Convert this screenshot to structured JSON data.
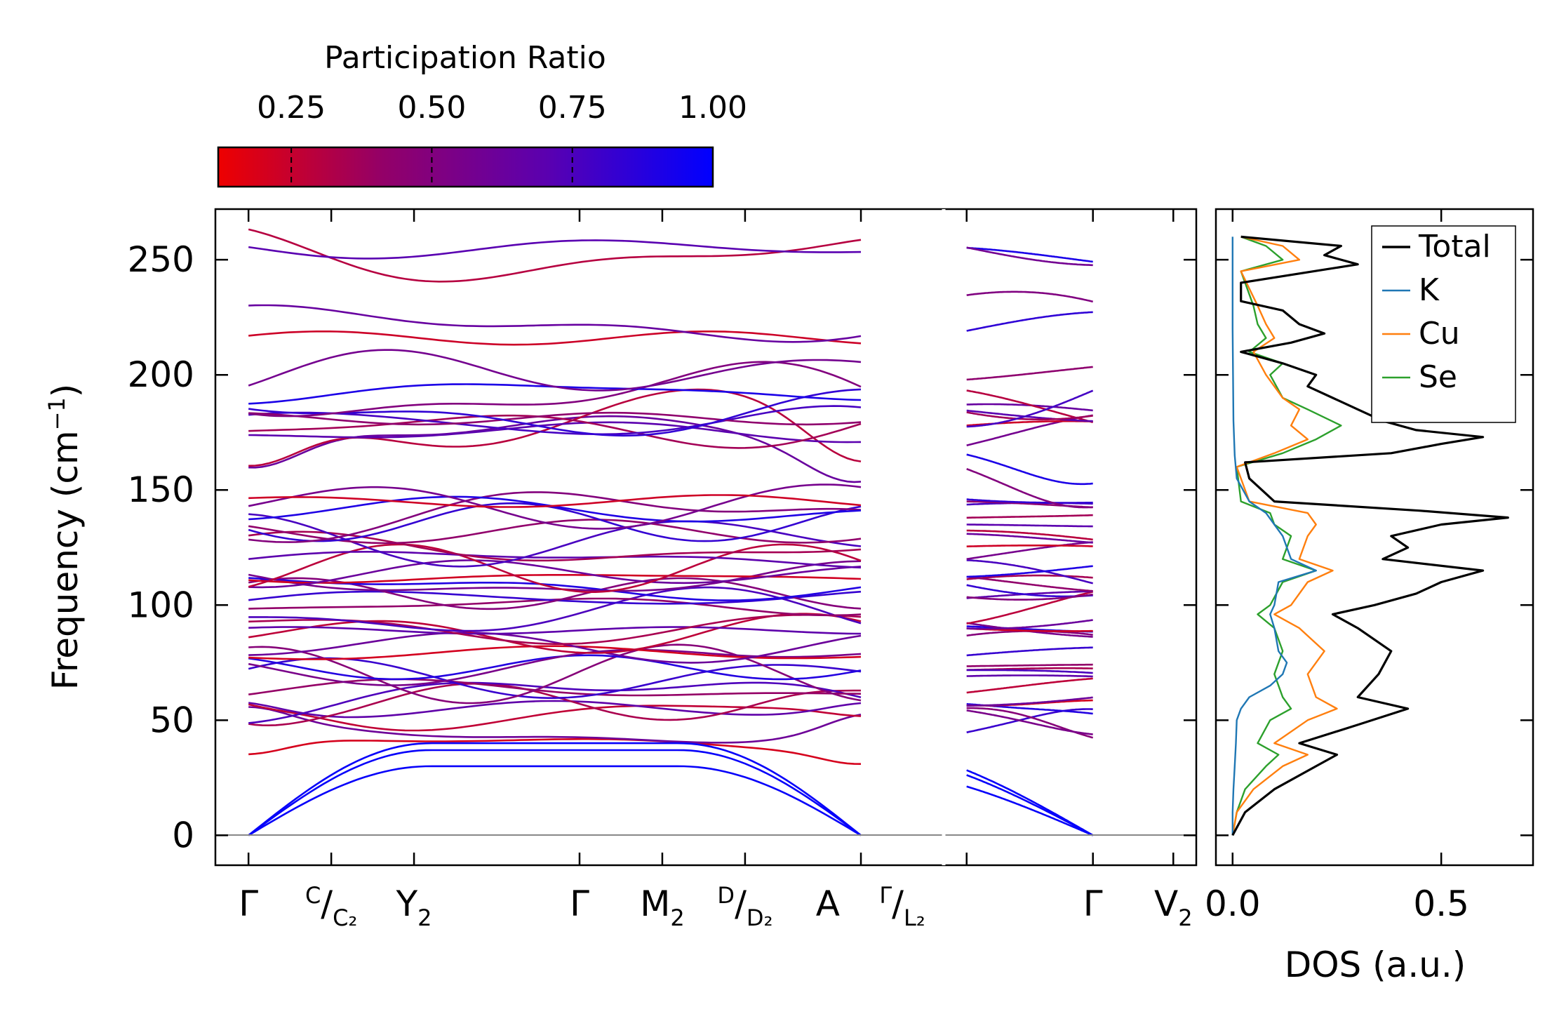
{
  "chart_data": [
    {
      "type": "line",
      "subtype": "phonon-dispersion",
      "ylabel": "Frequency (cm",
      "ylabel_sup": "−1",
      "ylabel_close": ")",
      "ylim": [
        -13,
        272
      ],
      "yticks": [
        0,
        50,
        100,
        150,
        200,
        250
      ],
      "ytick_labels": [
        "0",
        "50",
        "100",
        "150",
        "200",
        "250"
      ],
      "segments": [
        {
          "name": "left-panel",
          "xlim": [
            -0.2,
            4.2
          ],
          "path_points": [
            0,
            1,
            2,
            3.7
          ],
          "gamma_points": [
            0,
            3.7
          ]
        },
        {
          "name": "right-panel",
          "xlim": [
            -0.1,
            1.0
          ],
          "path_points": [
            0,
            0.55
          ],
          "gamma_points": [
            0.55
          ]
        }
      ],
      "high_symmetry_labels": [
        {
          "main": "Γ",
          "sup": "",
          "slash": "",
          "sub": ""
        },
        {
          "main": "",
          "sup": "C",
          "slash": "/",
          "sub": "C₂"
        },
        {
          "main": "Y",
          "sup": "",
          "slash": "",
          "sub": "2"
        },
        {
          "main": "Γ",
          "sup": "",
          "slash": "",
          "sub": ""
        },
        {
          "main": "M",
          "sup": "",
          "slash": "",
          "sub": "2"
        },
        {
          "main": "",
          "sup": "D",
          "slash": "/",
          "sub": "D₂"
        },
        {
          "main": "A",
          "sup": "",
          "slash": "",
          "sub": ""
        },
        {
          "main": "",
          "sup": "Γ",
          "slash": "/",
          "sub": "L₂"
        },
        {
          "main": "Γ",
          "sup": "",
          "slash": "",
          "sub": ""
        },
        {
          "main": "V",
          "sup": "",
          "slash": "",
          "sub": "2"
        }
      ],
      "colorbar": {
        "title": "Participation Ratio",
        "range": [
          0.12,
          1.0
        ],
        "ticks": [
          0.25,
          0.5,
          0.75,
          1.0
        ],
        "tick_labels": [
          "0.25",
          "0.50",
          "0.75",
          "1.00"
        ],
        "colors": [
          "#ee0000",
          "#930068",
          "#5a00b0",
          "#0000ff"
        ]
      },
      "acoustic_branch_count": 3,
      "optical_branch_frequencies": [
        40,
        44,
        53,
        55,
        58,
        60,
        63,
        68,
        70,
        73,
        75,
        79,
        82,
        87,
        89,
        91,
        96,
        100,
        103,
        105,
        108,
        110,
        112,
        114,
        116,
        120,
        124,
        128,
        132,
        136,
        139,
        141,
        143,
        145,
        166,
        170,
        175,
        177,
        179,
        181,
        184,
        191,
        193,
        201,
        216,
        222,
        251,
        255
      ]
    },
    {
      "type": "line",
      "subtype": "density-of-states",
      "xlabel": "DOS (a.u.)",
      "xlim": [
        -0.04,
        0.72
      ],
      "xticks": [
        0.0,
        0.5
      ],
      "xtick_labels": [
        "0.0",
        "0.5"
      ],
      "ylim": [
        -13,
        272
      ],
      "series": [
        {
          "name": "Total",
          "color": "#000000",
          "freq": [
            0,
            10,
            20,
            30,
            35,
            40,
            48,
            55,
            60,
            70,
            80,
            90,
            96,
            100,
            105,
            110,
            115,
            120,
            125,
            130,
            135,
            138,
            141,
            145,
            155,
            162,
            166,
            170,
            173,
            176,
            180,
            185,
            190,
            195,
            200,
            205,
            210,
            214,
            218,
            222,
            228,
            232,
            240,
            248,
            252,
            256,
            260
          ],
          "values": [
            0.0,
            0.03,
            0.1,
            0.2,
            0.25,
            0.16,
            0.3,
            0.42,
            0.3,
            0.35,
            0.38,
            0.3,
            0.24,
            0.34,
            0.44,
            0.5,
            0.6,
            0.36,
            0.42,
            0.38,
            0.5,
            0.66,
            0.45,
            0.1,
            0.04,
            0.03,
            0.38,
            0.5,
            0.6,
            0.44,
            0.36,
            0.3,
            0.24,
            0.18,
            0.2,
            0.12,
            0.02,
            0.14,
            0.22,
            0.16,
            0.12,
            0.02,
            0.02,
            0.3,
            0.22,
            0.26,
            0.02
          ]
        },
        {
          "name": "K",
          "color": "#1f77b4",
          "freq": [
            0,
            10,
            20,
            30,
            40,
            50,
            55,
            60,
            65,
            70,
            75,
            80,
            90,
            96,
            100,
            110,
            115,
            120,
            130,
            135,
            140,
            145,
            155,
            165,
            180,
            200,
            220,
            240,
            260
          ],
          "values": [
            0.0,
            0.0,
            0.002,
            0.005,
            0.008,
            0.01,
            0.02,
            0.04,
            0.09,
            0.12,
            0.13,
            0.11,
            0.1,
            0.09,
            0.1,
            0.11,
            0.2,
            0.14,
            0.12,
            0.1,
            0.08,
            0.04,
            0.01,
            0.005,
            0.002,
            0.001,
            0.0,
            0.0,
            0.0
          ]
        },
        {
          "name": "Cu",
          "color": "#ff7f0e",
          "freq": [
            0,
            10,
            20,
            30,
            35,
            40,
            50,
            55,
            60,
            70,
            80,
            90,
            96,
            100,
            110,
            115,
            120,
            130,
            135,
            140,
            145,
            160,
            166,
            172,
            178,
            185,
            190,
            200,
            210,
            216,
            222,
            230,
            245,
            250,
            256,
            260
          ],
          "values": [
            0.0,
            0.01,
            0.05,
            0.12,
            0.18,
            0.1,
            0.18,
            0.25,
            0.2,
            0.18,
            0.22,
            0.16,
            0.1,
            0.14,
            0.18,
            0.24,
            0.16,
            0.18,
            0.2,
            0.18,
            0.04,
            0.01,
            0.1,
            0.18,
            0.14,
            0.16,
            0.12,
            0.08,
            0.05,
            0.1,
            0.08,
            0.06,
            0.02,
            0.16,
            0.12,
            0.02
          ]
        },
        {
          "name": "Se",
          "color": "#2ca02c",
          "freq": [
            0,
            10,
            20,
            30,
            35,
            40,
            50,
            55,
            60,
            70,
            80,
            90,
            96,
            100,
            110,
            115,
            120,
            130,
            135,
            140,
            145,
            160,
            166,
            172,
            178,
            185,
            190,
            200,
            205,
            210,
            216,
            222,
            230,
            245,
            250,
            256,
            260
          ],
          "values": [
            0.0,
            0.01,
            0.03,
            0.08,
            0.11,
            0.06,
            0.09,
            0.14,
            0.12,
            0.1,
            0.12,
            0.1,
            0.06,
            0.09,
            0.12,
            0.2,
            0.12,
            0.14,
            0.1,
            0.09,
            0.02,
            0.01,
            0.12,
            0.2,
            0.26,
            0.18,
            0.12,
            0.09,
            0.12,
            0.04,
            0.08,
            0.06,
            0.05,
            0.02,
            0.12,
            0.08,
            0.02
          ]
        }
      ],
      "legend": {
        "position": "top-right",
        "entries": [
          "Total",
          "K",
          "Cu",
          "Se"
        ]
      }
    }
  ]
}
